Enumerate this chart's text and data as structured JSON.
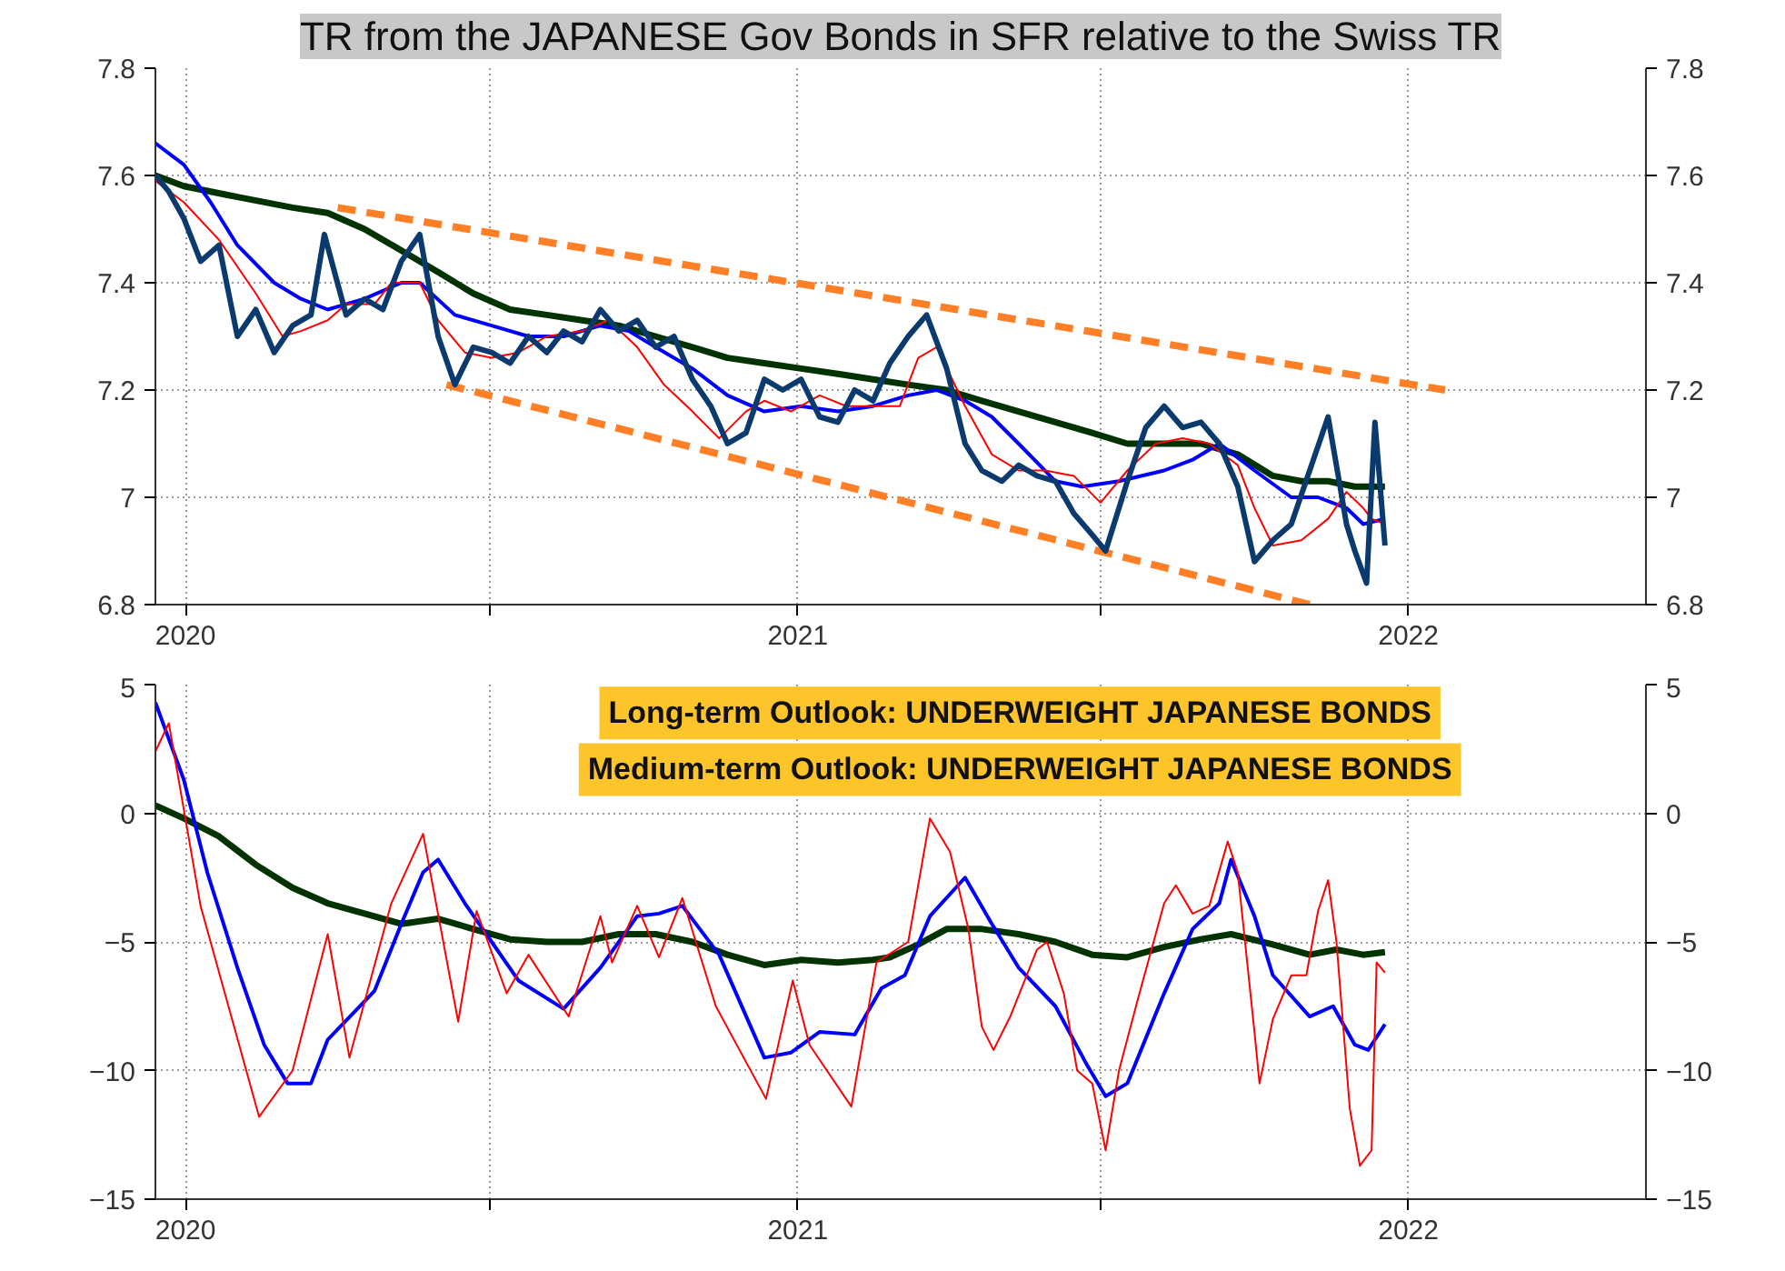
{
  "chart_data": [
    {
      "type": "line",
      "title": "TR from the JAPANESE Gov Bonds in SFR relative to the Swiss TR",
      "xlim": [
        "2019-12-14",
        "2022-05-23"
      ],
      "xticks": [
        {
          "value": "2020-01-01",
          "label": "2020"
        },
        {
          "value": "2020-07-01",
          "label": null
        },
        {
          "value": "2021-01-01",
          "label": "2021"
        },
        {
          "value": "2021-07-01",
          "label": null
        },
        {
          "value": "2022-01-01",
          "label": "2022"
        }
      ],
      "ylim": [
        6.8,
        7.8
      ],
      "yticks": [
        6.8,
        7.0,
        7.2,
        7.4,
        7.6,
        7.8
      ],
      "y2lim": [
        6.8,
        7.8
      ],
      "y2ticks": [
        6.8,
        7.0,
        7.2,
        7.4,
        7.6,
        7.8
      ],
      "grid": true,
      "marker": "none",
      "series": [
        {
          "color": "#ff7f27",
          "line_style": "dashed",
          "x": [
            "2020-04-01",
            "2022-01-23"
          ],
          "values": [
            7.54,
            7.2
          ]
        },
        {
          "color": "#ff7f27",
          "line_style": "dashed",
          "x": [
            "2020-06-05",
            "2021-11-03"
          ],
          "values": [
            7.21,
            6.8
          ]
        },
        {
          "color": "#003300",
          "x": [
            "2019-12-14",
            "2019-12-31",
            "2020-02-01",
            "2020-03-05",
            "2020-03-26",
            "2020-04-17",
            "2020-05-09",
            "2020-05-31",
            "2020-06-21",
            "2020-07-13",
            "2020-08-04",
            "2020-08-25",
            "2020-09-16",
            "2020-10-08",
            "2020-10-30",
            "2020-11-20",
            "2020-12-12",
            "2021-01-03",
            "2021-01-25",
            "2021-02-15",
            "2021-03-08",
            "2021-03-31",
            "2021-04-21",
            "2021-05-13",
            "2021-06-04",
            "2021-06-26",
            "2021-07-17",
            "2021-08-08",
            "2021-08-30",
            "2021-09-21",
            "2021-10-12",
            "2021-10-29",
            "2021-11-14",
            "2021-11-30",
            "2021-12-18"
          ],
          "values": [
            7.6,
            7.58,
            7.56,
            7.54,
            7.53,
            7.5,
            7.46,
            7.42,
            7.38,
            7.35,
            7.34,
            7.33,
            7.32,
            7.3,
            7.28,
            7.26,
            7.25,
            7.24,
            7.23,
            7.22,
            7.21,
            7.2,
            7.18,
            7.16,
            7.14,
            7.12,
            7.1,
            7.1,
            7.1,
            7.08,
            7.04,
            7.03,
            7.03,
            7.02,
            7.02
          ]
        },
        {
          "color": "#0000ff",
          "x": [
            "2019-12-14",
            "2019-12-31",
            "2020-01-16",
            "2020-02-01",
            "2020-02-23",
            "2020-03-10",
            "2020-03-26",
            "2020-04-17",
            "2020-05-09",
            "2020-05-20",
            "2020-06-10",
            "2020-07-02",
            "2020-07-24",
            "2020-08-14",
            "2020-09-05",
            "2020-09-22",
            "2020-10-08",
            "2020-10-30",
            "2020-11-20",
            "2020-12-12",
            "2021-01-03",
            "2021-01-25",
            "2021-02-15",
            "2021-03-08",
            "2021-03-25",
            "2021-04-11",
            "2021-04-27",
            "2021-05-13",
            "2021-06-04",
            "2021-06-20",
            "2021-07-12",
            "2021-08-08",
            "2021-08-25",
            "2021-09-10",
            "2021-10-01",
            "2021-10-23",
            "2021-11-08",
            "2021-11-25",
            "2021-12-05",
            "2021-12-18"
          ],
          "values": [
            7.66,
            7.62,
            7.55,
            7.47,
            7.4,
            7.37,
            7.35,
            7.37,
            7.4,
            7.4,
            7.34,
            7.32,
            7.3,
            7.3,
            7.32,
            7.31,
            7.28,
            7.24,
            7.19,
            7.16,
            7.17,
            7.16,
            7.17,
            7.19,
            7.2,
            7.18,
            7.15,
            7.1,
            7.03,
            7.02,
            7.03,
            7.05,
            7.07,
            7.1,
            7.05,
            7.0,
            7.0,
            6.98,
            6.95,
            6.96
          ]
        },
        {
          "color": "#ff0000",
          "x": [
            "2019-12-14",
            "2019-12-31",
            "2020-01-21",
            "2020-02-12",
            "2020-02-28",
            "2020-03-10",
            "2020-03-26",
            "2020-04-06",
            "2020-04-23",
            "2020-05-03",
            "2020-05-20",
            "2020-05-31",
            "2020-06-16",
            "2020-07-02",
            "2020-07-18",
            "2020-08-04",
            "2020-08-25",
            "2020-09-10",
            "2020-09-27",
            "2020-10-13",
            "2020-10-30",
            "2020-11-15",
            "2020-12-01",
            "2020-12-12",
            "2020-12-28",
            "2021-01-14",
            "2021-01-30",
            "2021-02-15",
            "2021-03-03",
            "2021-03-14",
            "2021-03-25",
            "2021-04-11",
            "2021-04-27",
            "2021-05-13",
            "2021-05-29",
            "2021-06-15",
            "2021-07-01",
            "2021-07-17",
            "2021-08-03",
            "2021-08-19",
            "2021-09-04",
            "2021-09-21",
            "2021-10-01",
            "2021-10-12",
            "2021-10-29",
            "2021-11-14",
            "2021-11-25",
            "2021-12-05",
            "2021-12-10",
            "2021-12-18"
          ],
          "values": [
            7.59,
            7.55,
            7.48,
            7.38,
            7.3,
            7.31,
            7.33,
            7.36,
            7.36,
            7.4,
            7.4,
            7.33,
            7.27,
            7.26,
            7.27,
            7.3,
            7.31,
            7.33,
            7.28,
            7.21,
            7.16,
            7.11,
            7.16,
            7.18,
            7.16,
            7.19,
            7.17,
            7.17,
            7.17,
            7.26,
            7.28,
            7.17,
            7.08,
            7.05,
            7.05,
            7.04,
            6.99,
            7.05,
            7.1,
            7.11,
            7.1,
            7.06,
            6.98,
            6.91,
            6.92,
            6.96,
            7.01,
            6.98,
            6.96,
            6.95
          ]
        },
        {
          "color": "#0b3a6e",
          "x": [
            "2019-12-14",
            "2019-12-22",
            "2019-12-31",
            "2020-01-10",
            "2020-01-21",
            "2020-02-01",
            "2020-02-12",
            "2020-02-23",
            "2020-03-05",
            "2020-03-16",
            "2020-03-24",
            "2020-04-06",
            "2020-04-17",
            "2020-04-28",
            "2020-05-09",
            "2020-05-20",
            "2020-05-31",
            "2020-06-10",
            "2020-06-21",
            "2020-07-02",
            "2020-07-13",
            "2020-07-24",
            "2020-08-04",
            "2020-08-14",
            "2020-08-25",
            "2020-09-05",
            "2020-09-16",
            "2020-09-27",
            "2020-10-08",
            "2020-10-19",
            "2020-10-30",
            "2020-11-10",
            "2020-11-20",
            "2020-12-01",
            "2020-12-12",
            "2020-12-23",
            "2021-01-03",
            "2021-01-14",
            "2021-01-25",
            "2021-02-04",
            "2021-02-15",
            "2021-02-25",
            "2021-03-08",
            "2021-03-19",
            "2021-03-31",
            "2021-04-11",
            "2021-04-21",
            "2021-05-03",
            "2021-05-13",
            "2021-05-24",
            "2021-06-04",
            "2021-06-15",
            "2021-06-26",
            "2021-07-04",
            "2021-07-17",
            "2021-07-28",
            "2021-08-08",
            "2021-08-19",
            "2021-08-30",
            "2021-09-10",
            "2021-09-21",
            "2021-10-01",
            "2021-10-12",
            "2021-10-23",
            "2021-11-03",
            "2021-11-14",
            "2021-11-25",
            "2021-11-30",
            "2021-12-07",
            "2021-12-12",
            "2021-12-18"
          ],
          "values": [
            7.6,
            7.57,
            7.52,
            7.44,
            7.47,
            7.3,
            7.35,
            7.27,
            7.32,
            7.34,
            7.49,
            7.34,
            7.37,
            7.35,
            7.44,
            7.49,
            7.3,
            7.21,
            7.28,
            7.27,
            7.25,
            7.3,
            7.27,
            7.31,
            7.29,
            7.35,
            7.31,
            7.33,
            7.28,
            7.3,
            7.22,
            7.17,
            7.1,
            7.12,
            7.22,
            7.2,
            7.22,
            7.15,
            7.14,
            7.2,
            7.18,
            7.25,
            7.3,
            7.34,
            7.24,
            7.1,
            7.05,
            7.03,
            7.06,
            7.04,
            7.03,
            6.97,
            6.93,
            6.9,
            7.03,
            7.13,
            7.17,
            7.13,
            7.14,
            7.1,
            7.02,
            6.88,
            6.92,
            6.95,
            7.05,
            7.15,
            6.95,
            6.9,
            6.84,
            7.14,
            6.91
          ]
        }
      ]
    },
    {
      "type": "line",
      "annotations": [
        "Long-term Outlook: UNDERWEIGHT JAPANESE BONDS",
        "Medium-term Outlook: UNDERWEIGHT JAPANESE BONDS"
      ],
      "xlim": [
        "2019-12-14",
        "2022-05-23"
      ],
      "xticks": [
        {
          "value": "2020-01-01",
          "label": "2020"
        },
        {
          "value": "2020-07-01",
          "label": null
        },
        {
          "value": "2021-01-01",
          "label": "2021"
        },
        {
          "value": "2021-07-01",
          "label": null
        },
        {
          "value": "2022-01-01",
          "label": "2022"
        }
      ],
      "ylim": [
        -15,
        5
      ],
      "yticks": [
        -15,
        -10,
        -5,
        0,
        5
      ],
      "y2lim": [
        -15,
        5
      ],
      "y2ticks": [
        -15,
        -10,
        -5,
        0,
        5
      ],
      "grid": true,
      "marker": "none",
      "series": [
        {
          "color": "#003300",
          "x": [
            "2019-12-14",
            "2019-12-31",
            "2020-01-21",
            "2020-02-12",
            "2020-03-05",
            "2020-03-26",
            "2020-04-17",
            "2020-05-09",
            "2020-05-31",
            "2020-06-21",
            "2020-07-13",
            "2020-08-04",
            "2020-08-25",
            "2020-09-16",
            "2020-10-08",
            "2020-10-30",
            "2020-11-20",
            "2020-12-12",
            "2021-01-03",
            "2021-01-25",
            "2021-02-15",
            "2021-02-25",
            "2021-03-14",
            "2021-03-31",
            "2021-04-21",
            "2021-05-13",
            "2021-06-04",
            "2021-06-26",
            "2021-07-17",
            "2021-08-08",
            "2021-08-30",
            "2021-09-17",
            "2021-10-12",
            "2021-11-03",
            "2021-11-19",
            "2021-12-05",
            "2021-12-18"
          ],
          "values": [
            0.3,
            -0.2,
            -0.9,
            -2.0,
            -2.9,
            -3.5,
            -3.9,
            -4.3,
            -4.1,
            -4.5,
            -4.9,
            -5.0,
            -5.0,
            -4.7,
            -4.7,
            -5.0,
            -5.5,
            -5.9,
            -5.7,
            -5.8,
            -5.7,
            -5.6,
            -5.1,
            -4.5,
            -4.5,
            -4.7,
            -5.0,
            -5.5,
            -5.6,
            -5.2,
            -4.9,
            -4.7,
            -5.1,
            -5.5,
            -5.3,
            -5.5,
            -5.4
          ]
        },
        {
          "color": "#0000ff",
          "x": [
            "2019-12-14",
            "2019-12-31",
            "2020-01-14",
            "2020-02-01",
            "2020-02-17",
            "2020-03-02",
            "2020-03-16",
            "2020-03-26",
            "2020-04-23",
            "2020-05-09",
            "2020-05-22",
            "2020-05-31",
            "2020-06-16",
            "2020-07-02",
            "2020-07-18",
            "2020-08-14",
            "2020-09-05",
            "2020-09-27",
            "2020-10-10",
            "2020-10-24",
            "2020-11-15",
            "2020-12-12",
            "2020-12-28",
            "2021-01-14",
            "2021-02-04",
            "2021-02-20",
            "2021-03-06",
            "2021-03-21",
            "2021-04-11",
            "2021-04-27",
            "2021-05-13",
            "2021-06-04",
            "2021-06-23",
            "2021-07-04",
            "2021-07-17",
            "2021-08-08",
            "2021-08-25",
            "2021-09-10",
            "2021-09-17",
            "2021-10-01",
            "2021-10-12",
            "2021-11-03",
            "2021-11-17",
            "2021-11-30",
            "2021-12-08",
            "2021-12-18"
          ],
          "values": [
            4.3,
            1.3,
            -2.3,
            -6.0,
            -9.0,
            -10.5,
            -10.5,
            -8.8,
            -6.9,
            -4.3,
            -2.3,
            -1.8,
            -3.5,
            -5.0,
            -6.5,
            -7.6,
            -6.0,
            -4.0,
            -3.9,
            -3.6,
            -5.5,
            -9.5,
            -9.3,
            -8.5,
            -8.6,
            -6.8,
            -6.3,
            -4.0,
            -2.5,
            -4.3,
            -6.0,
            -7.5,
            -9.8,
            -11.0,
            -10.5,
            -7.0,
            -4.5,
            -3.5,
            -1.8,
            -4.0,
            -6.3,
            -7.9,
            -7.5,
            -9.0,
            -9.2,
            -8.2
          ]
        },
        {
          "color": "#ff0000",
          "x": [
            "2019-12-14",
            "2019-12-22",
            "2020-01-10",
            "2020-02-14",
            "2020-03-05",
            "2020-03-26",
            "2020-04-08",
            "2020-05-03",
            "2020-05-22",
            "2020-06-12",
            "2020-06-23",
            "2020-07-11",
            "2020-07-24",
            "2020-08-17",
            "2020-09-05",
            "2020-09-12",
            "2020-09-27",
            "2020-10-10",
            "2020-10-24",
            "2020-11-13",
            "2020-12-13",
            "2020-12-29",
            "2021-01-08",
            "2021-02-02",
            "2021-02-17",
            "2021-03-08",
            "2021-03-21",
            "2021-04-02",
            "2021-04-13",
            "2021-04-21",
            "2021-04-28",
            "2021-05-08",
            "2021-05-24",
            "2021-05-30",
            "2021-06-09",
            "2021-06-17",
            "2021-06-26",
            "2021-07-04",
            "2021-07-12",
            "2021-07-23",
            "2021-08-08",
            "2021-08-15",
            "2021-08-25",
            "2021-09-04",
            "2021-09-15",
            "2021-09-21",
            "2021-10-01",
            "2021-10-04",
            "2021-10-12",
            "2021-10-23",
            "2021-11-01",
            "2021-11-08",
            "2021-11-14",
            "2021-11-19",
            "2021-11-27",
            "2021-12-03",
            "2021-12-10",
            "2021-12-13",
            "2021-12-18"
          ],
          "values": [
            2.4,
            3.5,
            -3.6,
            -11.8,
            -10.0,
            -4.7,
            -9.5,
            -3.5,
            -0.8,
            -8.1,
            -3.8,
            -7.0,
            -5.5,
            -7.9,
            -4.0,
            -5.8,
            -3.6,
            -5.6,
            -3.3,
            -7.5,
            -11.1,
            -6.5,
            -9.0,
            -11.4,
            -5.8,
            -5.0,
            -0.2,
            -1.5,
            -4.5,
            -8.3,
            -9.2,
            -7.9,
            -5.3,
            -5.0,
            -7.0,
            -10.0,
            -10.5,
            -13.1,
            -10.0,
            -7.3,
            -3.5,
            -2.8,
            -3.9,
            -3.6,
            -1.1,
            -2.3,
            -8.5,
            -10.5,
            -8.0,
            -6.3,
            -6.3,
            -3.8,
            -2.6,
            -5.0,
            -11.5,
            -13.7,
            -13.1,
            -5.8,
            -6.2
          ]
        }
      ]
    }
  ]
}
